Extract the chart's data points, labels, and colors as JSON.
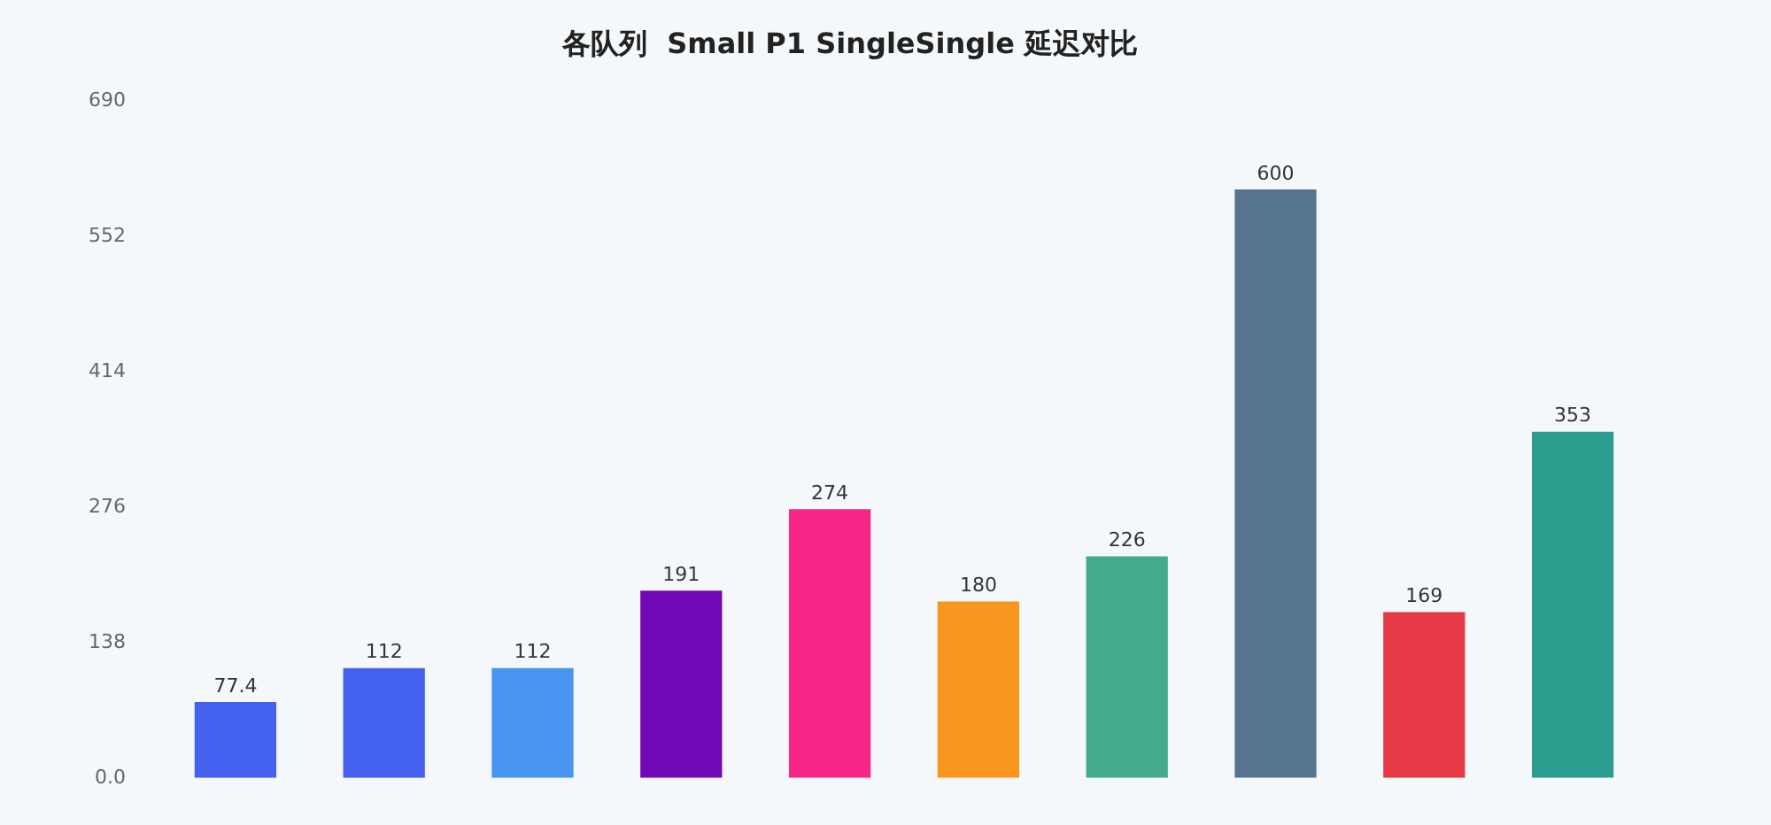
{
  "chart_data": {
    "type": "bar",
    "title": "各队列  Small P1 SingleSingle 延迟对比",
    "categories": [
      null,
      null,
      null,
      null,
      null,
      null,
      null,
      null,
      null,
      null
    ],
    "values": [
      77.4,
      112,
      112,
      191,
      274,
      180,
      226,
      600,
      169,
      353
    ],
    "colors": [
      "#4361ee",
      "#4361ee",
      "#4895ef",
      "#7209b7",
      "#f72585",
      "#f8961e",
      "#43aa8b",
      "#577590",
      "#e63946",
      "#2a9d8f"
    ],
    "ylim": [
      0,
      690
    ],
    "yticks": [
      {
        "value": 0,
        "label": "0.0"
      },
      138,
      276,
      414,
      552,
      690
    ],
    "data_labels": true,
    "grid": false,
    "legend": false
  }
}
